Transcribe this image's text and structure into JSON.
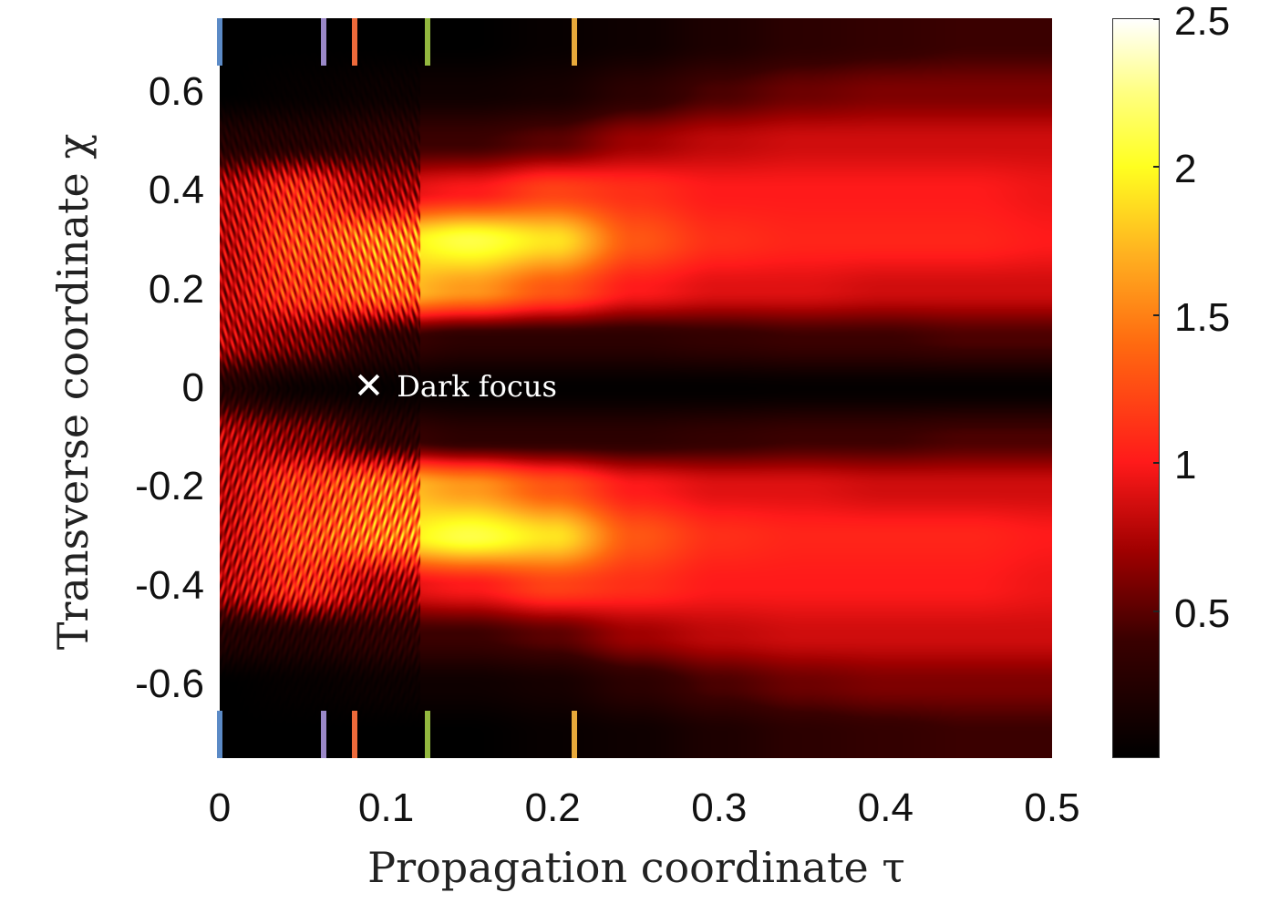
{
  "chart_data": {
    "type": "heatmap",
    "title": "",
    "xlabel": "Propagation coordinate τ",
    "ylabel": "Transverse coordinate χ",
    "xlim": [
      0,
      0.5
    ],
    "ylim": [
      -0.75,
      0.75
    ],
    "x_ticks": [
      "0",
      "0.1",
      "0.2",
      "0.3",
      "0.4",
      "0.5"
    ],
    "x_tick_values": [
      0,
      0.1,
      0.2,
      0.3,
      0.4,
      0.5
    ],
    "y_ticks": [
      "0.6",
      "0.4",
      "0.2",
      "0",
      "-0.2",
      "-0.4",
      "-0.6"
    ],
    "y_tick_values": [
      0.6,
      0.4,
      0.2,
      0,
      -0.2,
      -0.4,
      -0.6
    ],
    "colorbar": {
      "range": [
        0,
        2.5
      ],
      "ticks": [
        "0.5",
        "1",
        "1.5",
        "2",
        "2.5"
      ],
      "tick_values": [
        0.5,
        1,
        1.5,
        2,
        2.5
      ],
      "colormap": "hot"
    },
    "grid_tau": [
      0,
      0.05,
      0.1,
      0.15,
      0.2,
      0.25,
      0.3,
      0.35,
      0.4,
      0.45,
      0.5
    ],
    "grid_chi": [
      0.7,
      0.6,
      0.5,
      0.4,
      0.3,
      0.2,
      0.1,
      0,
      -0.1,
      -0.2,
      -0.3,
      -0.4,
      -0.5,
      -0.6,
      -0.7
    ],
    "intensity": [
      [
        0,
        0,
        0,
        0,
        0.05,
        0.1,
        0.2,
        0.3,
        0.35,
        0.4,
        0.4
      ],
      [
        0,
        0.05,
        0.1,
        0.1,
        0.15,
        0.3,
        0.45,
        0.55,
        0.6,
        0.6,
        0.6
      ],
      [
        0.3,
        0.3,
        0.4,
        0.4,
        0.5,
        0.7,
        0.8,
        0.85,
        0.85,
        0.85,
        0.85
      ],
      [
        1.0,
        1.4,
        0.9,
        1.0,
        1.2,
        1.1,
        1.0,
        1.0,
        1.0,
        1.0,
        0.95
      ],
      [
        1.0,
        1.6,
        1.9,
        2.1,
        1.9,
        1.3,
        1.1,
        1.05,
        1.05,
        1.05,
        1.0
      ],
      [
        1.0,
        1.5,
        1.8,
        1.6,
        1.3,
        1.0,
        0.9,
        0.9,
        0.85,
        0.85,
        0.85
      ],
      [
        1.0,
        0.8,
        0.4,
        0.3,
        0.3,
        0.3,
        0.35,
        0.4,
        0.4,
        0.45,
        0.45
      ],
      [
        0.3,
        0.1,
        0.05,
        0.02,
        0.02,
        0.02,
        0.02,
        0.03,
        0.03,
        0.03,
        0.03
      ],
      [
        1.0,
        0.8,
        0.4,
        0.3,
        0.3,
        0.3,
        0.35,
        0.4,
        0.4,
        0.45,
        0.45
      ],
      [
        1.0,
        1.5,
        1.8,
        1.6,
        1.3,
        1.0,
        0.9,
        0.9,
        0.85,
        0.85,
        0.85
      ],
      [
        1.0,
        1.6,
        1.9,
        2.1,
        1.9,
        1.3,
        1.1,
        1.05,
        1.05,
        1.05,
        1.0
      ],
      [
        1.0,
        1.4,
        0.9,
        1.0,
        1.2,
        1.1,
        1.0,
        1.0,
        1.0,
        1.0,
        0.95
      ],
      [
        0.3,
        0.3,
        0.4,
        0.4,
        0.5,
        0.7,
        0.8,
        0.85,
        0.85,
        0.85,
        0.85
      ],
      [
        0,
        0.05,
        0.1,
        0.1,
        0.15,
        0.3,
        0.45,
        0.55,
        0.6,
        0.6,
        0.6
      ],
      [
        0,
        0,
        0,
        0,
        0.05,
        0.1,
        0.2,
        0.3,
        0.35,
        0.4,
        0.4
      ]
    ],
    "markers": [
      {
        "tau": 0,
        "color": "#5b8ac6"
      },
      {
        "tau": 0.0625,
        "color": "#9a88c8"
      },
      {
        "tau": 0.081,
        "color": "#ee6a3a"
      },
      {
        "tau": 0.125,
        "color": "#93b83f"
      },
      {
        "tau": 0.213,
        "color": "#e8a93a"
      }
    ],
    "annotation": {
      "text": "Dark focus",
      "symbol": "✕",
      "tau": 0.088,
      "chi": 0
    }
  }
}
